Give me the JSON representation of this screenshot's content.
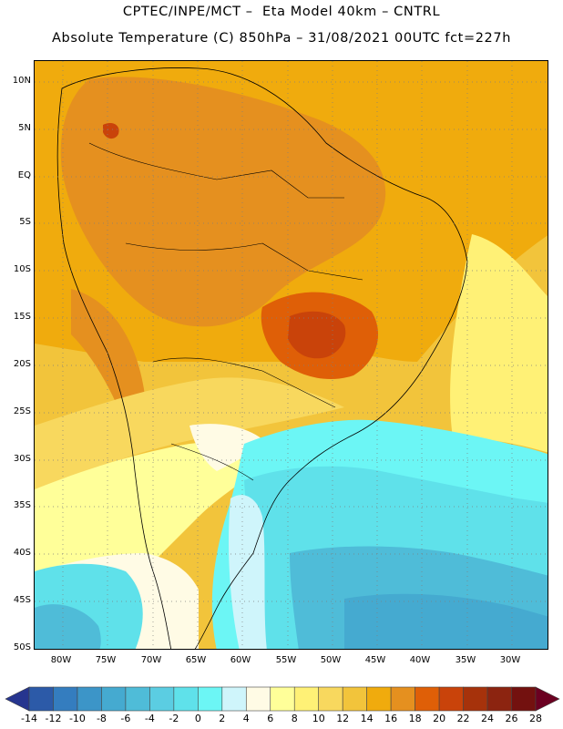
{
  "header": {
    "line1": "CPTEC/INPE/MCT –  Eta Model 40km – CNTRL",
    "line2": "Absolute Temperature (C) 850hPa – 31/08/2021 00UTC fct=227h"
  },
  "map": {
    "type": "filled-contour",
    "projection": "lat-lon",
    "lon_range": [
      -85,
      -27
    ],
    "lat_range": [
      -50,
      12
    ],
    "grid": true,
    "lat_ticks": [
      "10N",
      "5N",
      "EQ",
      "5S",
      "10S",
      "15S",
      "20S",
      "25S",
      "30S",
      "35S",
      "40S",
      "45S",
      "50S"
    ],
    "lon_ticks": [
      "80W",
      "75W",
      "70W",
      "65W",
      "60W",
      "55W",
      "50W",
      "45W",
      "40W",
      "35W",
      "30W"
    ]
  },
  "colorbar": {
    "labels": [
      "-14",
      "-12",
      "-10",
      "-8",
      "-6",
      "-4",
      "-2",
      "0",
      "2",
      "4",
      "6",
      "8",
      "10",
      "12",
      "14",
      "16",
      "18",
      "20",
      "22",
      "24",
      "26",
      "28"
    ],
    "colors": [
      "#26358f",
      "#2c5aa8",
      "#347dbf",
      "#3c95c8",
      "#45aad0",
      "#4fbcd8",
      "#5bcde2",
      "#5fe1ea",
      "#6cf6f5",
      "#cff5fb",
      "#fffbe5",
      "#ffff99",
      "#fff176",
      "#f8d85e",
      "#f2c43b",
      "#f0ab0d",
      "#e5901f",
      "#df5f07",
      "#c9430a",
      "#a6320b",
      "#8c2410",
      "#73110f",
      "#6b0021"
    ]
  }
}
